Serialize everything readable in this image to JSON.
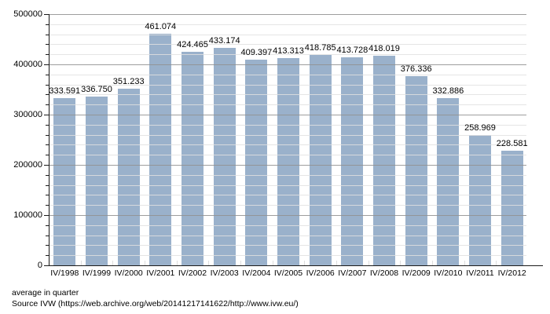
{
  "chart_data": {
    "type": "bar",
    "title": "",
    "xlabel": "",
    "ylabel": "",
    "categories": [
      "IV/1998",
      "IV/1999",
      "IV/2000",
      "IV/2001",
      "IV/2002",
      "IV/2003",
      "IV/2004",
      "IV/2005",
      "IV/2006",
      "IV/2007",
      "IV/2008",
      "IV/2009",
      "IV/2010",
      "IV/2011",
      "IV/2012"
    ],
    "values": [
      333591,
      336750,
      351233,
      461074,
      424465,
      433174,
      409397,
      413313,
      418785,
      413728,
      418019,
      376336,
      332886,
      258969,
      228581
    ],
    "value_labels": [
      "333.591",
      "336.750",
      "351.233",
      "461.074",
      "424.465",
      "433.174",
      "409.397",
      "413.313",
      "418.785",
      "413.728",
      "418.019",
      "376.336",
      "332.886",
      "258.969",
      "228.581"
    ],
    "ylim": [
      0,
      500000
    ],
    "y_major_step": 100000,
    "y_minor_step": 20000,
    "y_tick_labels": [
      "0",
      "100000",
      "200000",
      "300000",
      "400000",
      "500000"
    ],
    "grid": "horizontal major+minor, drawn over bars",
    "legend": "none",
    "bar_color": "#9AB1CB"
  },
  "footer": {
    "line1": "average in quarter",
    "line2": "Source IVW (https://web.archive.org/web/20141217141622/http://www.ivw.eu/)"
  }
}
